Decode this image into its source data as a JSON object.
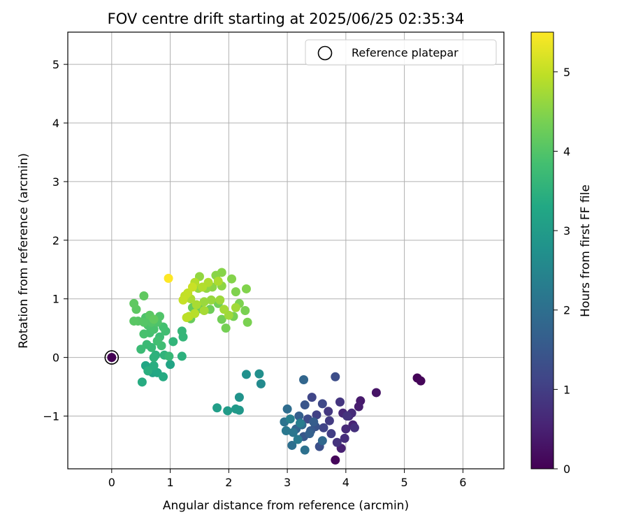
{
  "chart_data": {
    "type": "scatter",
    "title": "FOV centre drift starting at 2025/06/25 02:35:34",
    "xlabel": "Angular distance from reference (arcmin)",
    "ylabel": "Rotation from reference (arcmin)",
    "xlim": [
      -0.75,
      6.7
    ],
    "ylim": [
      -1.9,
      5.55
    ],
    "xticks": [
      0,
      1,
      2,
      3,
      4,
      5,
      6
    ],
    "xtick_labels": [
      "0",
      "1",
      "2",
      "3",
      "4",
      "5",
      "6"
    ],
    "yticks": [
      -1,
      0,
      1,
      2,
      3,
      4,
      5
    ],
    "ytick_labels": [
      "−1",
      "0",
      "1",
      "2",
      "3",
      "4",
      "5"
    ],
    "grid": true,
    "legend": {
      "placement": "upper-right",
      "entries": [
        "Reference platepar"
      ]
    },
    "colorbar": {
      "label": "Hours from first FF file",
      "range": [
        0,
        5.5
      ],
      "ticks": [
        0,
        1,
        2,
        3,
        4,
        5
      ],
      "tick_labels": [
        "0",
        "1",
        "2",
        "3",
        "4",
        "5"
      ],
      "colormap": "viridis"
    },
    "reference_point": {
      "x": 0,
      "y": 0
    },
    "points": [
      [
        0,
        0,
        0
      ],
      [
        5.22,
        -0.35,
        0.05
      ],
      [
        5.28,
        -0.4,
        0.08
      ],
      [
        3.82,
        -1.75,
        0.1
      ],
      [
        4.52,
        -0.6,
        0.3
      ],
      [
        4.25,
        -0.74,
        0.4
      ],
      [
        4.22,
        -0.84,
        0.45
      ],
      [
        3.92,
        -1.55,
        0.5
      ],
      [
        4.12,
        -1.15,
        0.55
      ],
      [
        3.95,
        -0.95,
        0.6
      ],
      [
        4.05,
        -1.0,
        0.62
      ],
      [
        4.0,
        -1.22,
        0.65
      ],
      [
        4.1,
        -0.95,
        0.68
      ],
      [
        3.98,
        -1.38,
        0.7
      ],
      [
        4.15,
        -1.2,
        0.75
      ],
      [
        3.85,
        -1.45,
        0.8
      ],
      [
        4.02,
        -1.0,
        0.82
      ],
      [
        3.9,
        -0.76,
        0.85
      ],
      [
        3.7,
        -0.92,
        0.9
      ],
      [
        3.72,
        -1.08,
        0.95
      ],
      [
        3.75,
        -1.3,
        1.0
      ],
      [
        3.5,
        -0.98,
        1.05
      ],
      [
        3.62,
        -1.2,
        1.1
      ],
      [
        3.42,
        -0.68,
        1.15
      ],
      [
        3.6,
        -0.79,
        1.2
      ],
      [
        3.35,
        -1.05,
        1.25
      ],
      [
        3.82,
        -0.33,
        1.3
      ],
      [
        3.55,
        -1.52,
        1.35
      ],
      [
        3.48,
        -1.18,
        1.4
      ],
      [
        3.3,
        -0.81,
        1.45
      ],
      [
        3.28,
        -1.35,
        1.5
      ],
      [
        3.4,
        -1.25,
        1.55
      ],
      [
        3.45,
        -1.1,
        1.6
      ],
      [
        3.2,
        -1.0,
        1.65
      ],
      [
        3.38,
        -1.3,
        1.7
      ],
      [
        3.15,
        -1.22,
        1.75
      ],
      [
        3.28,
        -0.38,
        1.8
      ],
      [
        3.6,
        -1.42,
        1.85
      ],
      [
        3.25,
        -1.15,
        1.9
      ],
      [
        3.0,
        -0.88,
        1.95
      ],
      [
        3.08,
        -1.5,
        2.0
      ],
      [
        3.3,
        -1.58,
        2.05
      ],
      [
        2.95,
        -1.1,
        2.1
      ],
      [
        3.1,
        -1.28,
        2.15
      ],
      [
        2.98,
        -1.25,
        2.2
      ],
      [
        3.18,
        -1.4,
        2.25
      ],
      [
        3.22,
        -1.12,
        2.3
      ],
      [
        3.05,
        -1.05,
        2.35
      ],
      [
        2.55,
        -0.45,
        2.6
      ],
      [
        2.52,
        -0.28,
        2.7
      ],
      [
        2.3,
        -0.29,
        2.75
      ],
      [
        2.18,
        -0.68,
        2.8
      ],
      [
        2.18,
        -0.9,
        2.9
      ],
      [
        2.12,
        -0.88,
        2.95
      ],
      [
        1.98,
        -0.91,
        3.0
      ],
      [
        1.8,
        -0.86,
        3.05
      ],
      [
        0.7,
        -0.26,
        3.15
      ],
      [
        1.0,
        -0.12,
        3.2
      ],
      [
        0.58,
        -0.14,
        3.25
      ],
      [
        0.78,
        -0.26,
        3.3
      ],
      [
        0.88,
        -0.33,
        3.35
      ],
      [
        0.52,
        -0.42,
        3.38
      ],
      [
        0.72,
        -0.14,
        3.42
      ],
      [
        0.62,
        -0.23,
        3.45
      ],
      [
        1.2,
        0.02,
        3.48
      ],
      [
        0.75,
        0.04,
        3.5
      ],
      [
        0.72,
        0.0,
        3.52
      ],
      [
        0.9,
        0.04,
        3.55
      ],
      [
        1.05,
        0.27,
        3.58
      ],
      [
        1.22,
        0.35,
        3.6
      ],
      [
        1.2,
        0.45,
        3.62
      ],
      [
        0.98,
        0.02,
        3.65
      ],
      [
        0.68,
        0.17,
        3.68
      ],
      [
        0.6,
        0.22,
        3.7
      ],
      [
        0.5,
        0.14,
        3.72
      ],
      [
        0.82,
        0.35,
        3.75
      ],
      [
        0.85,
        0.2,
        3.78
      ],
      [
        0.92,
        0.45,
        3.8
      ],
      [
        0.78,
        0.28,
        3.82
      ],
      [
        0.88,
        0.52,
        3.84
      ],
      [
        0.65,
        0.42,
        3.86
      ],
      [
        0.55,
        0.4,
        3.88
      ],
      [
        0.72,
        0.48,
        3.9
      ],
      [
        0.62,
        0.55,
        3.92
      ],
      [
        0.58,
        0.68,
        3.94
      ],
      [
        0.78,
        0.6,
        3.96
      ],
      [
        0.82,
        0.7,
        3.98
      ],
      [
        0.68,
        0.6,
        4.0
      ],
      [
        0.55,
        0.6,
        4.02
      ],
      [
        0.45,
        0.62,
        4.04
      ],
      [
        0.38,
        0.62,
        4.06
      ],
      [
        0.65,
        0.72,
        4.08
      ],
      [
        0.42,
        0.82,
        4.1
      ],
      [
        0.38,
        0.92,
        4.12
      ],
      [
        0.55,
        1.05,
        4.14
      ],
      [
        0.72,
        0.65,
        4.16
      ],
      [
        1.38,
        0.85,
        4.2
      ],
      [
        1.35,
        0.66,
        4.22
      ],
      [
        1.52,
        0.83,
        4.25
      ],
      [
        1.68,
        0.82,
        4.28
      ],
      [
        1.82,
        0.92,
        4.3
      ],
      [
        1.88,
        0.65,
        4.32
      ],
      [
        1.95,
        0.5,
        4.34
      ],
      [
        2.08,
        0.7,
        4.36
      ],
      [
        2.28,
        0.8,
        4.38
      ],
      [
        2.32,
        0.6,
        4.4
      ],
      [
        2.18,
        0.92,
        4.42
      ],
      [
        2.12,
        1.12,
        4.44
      ],
      [
        2.3,
        1.17,
        4.46
      ],
      [
        2.05,
        1.34,
        4.48
      ],
      [
        1.88,
        1.45,
        4.5
      ],
      [
        1.78,
        1.4,
        4.52
      ],
      [
        1.72,
        1.2,
        4.54
      ],
      [
        1.88,
        1.22,
        4.56
      ],
      [
        1.62,
        1.18,
        4.58
      ],
      [
        1.5,
        1.38,
        4.6
      ],
      [
        1.48,
        1.18,
        4.62
      ],
      [
        1.7,
        0.98,
        4.64
      ],
      [
        1.58,
        0.95,
        4.66
      ],
      [
        1.85,
        0.98,
        4.68
      ],
      [
        2.0,
        0.72,
        4.7
      ],
      [
        2.12,
        0.85,
        4.72
      ],
      [
        1.92,
        0.82,
        4.74
      ],
      [
        1.58,
        0.8,
        4.76
      ],
      [
        1.45,
        0.9,
        4.78
      ],
      [
        1.35,
        1.0,
        4.8
      ],
      [
        1.82,
        1.3,
        4.82
      ],
      [
        1.65,
        1.28,
        4.84
      ],
      [
        1.55,
        1.2,
        4.86
      ],
      [
        1.42,
        1.28,
        4.88
      ],
      [
        1.42,
        0.75,
        4.9
      ],
      [
        1.32,
        0.7,
        4.92
      ],
      [
        1.28,
        0.68,
        4.94
      ],
      [
        1.25,
        1.05,
        4.98
      ],
      [
        1.3,
        1.1,
        5.0
      ],
      [
        1.22,
        0.98,
        5.02
      ],
      [
        1.38,
        1.2,
        5.05
      ],
      [
        0.97,
        1.35,
        5.5
      ]
    ]
  }
}
